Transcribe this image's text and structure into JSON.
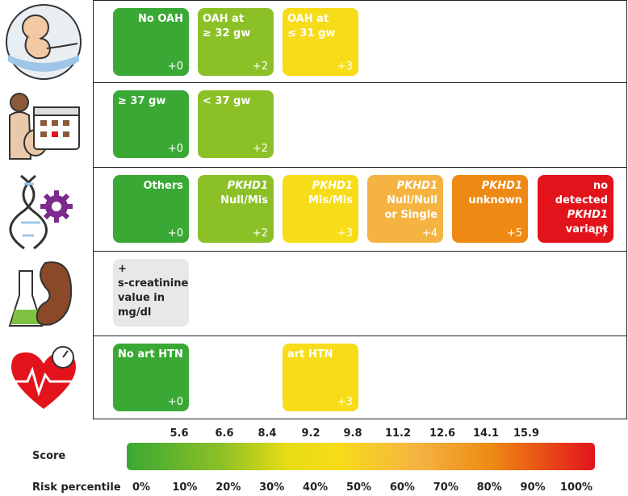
{
  "rows": [
    {
      "icon": "fetus-icon",
      "boxes": [
        {
          "label": "No OAH",
          "points": "+0",
          "color": "#3aa835"
        },
        {
          "label": "OAH at\n≥ 32 gw",
          "points": "+2",
          "color": "#8cc027"
        },
        {
          "label": "OAH at\n≤ 31 gw",
          "points": "+3",
          "color": "#f7dc19"
        }
      ]
    },
    {
      "icon": "pregnant-calendar-icon",
      "boxes": [
        {
          "label": "≥ 37 gw",
          "points": "+0",
          "color": "#3aa835"
        },
        {
          "label": "< 37 gw",
          "points": "+2",
          "color": "#8cc027"
        }
      ]
    },
    {
      "icon": "dna-gear-icon",
      "boxes": [
        {
          "label": "Others",
          "points": "+0",
          "color": "#3aa835"
        },
        {
          "italic": "PKHD1",
          "label": "Null/Mis",
          "points": "+2",
          "color": "#8cc027"
        },
        {
          "italic": "PKHD1",
          "label": "Mis/Mis",
          "points": "+3",
          "color": "#f7dc19"
        },
        {
          "italic": "PKHD1",
          "label": "Null/Null\nor Single",
          "points": "+4",
          "color": "#f5b342"
        },
        {
          "italic": "PKHD1",
          "label": "unknown",
          "points": "+5",
          "color": "#ee8a13"
        },
        {
          "pre": "no detected",
          "italic": "PKHD1",
          "label": "variant",
          "points": "+7",
          "color": "#e2131b"
        }
      ]
    },
    {
      "icon": "kidney-flask-icon",
      "boxes": [
        {
          "label": "+\ns-creatinine\nvalue in\nmg/dl",
          "color": "#e8e8e8"
        }
      ]
    },
    {
      "icon": "heart-pressure-icon",
      "boxes": [
        {
          "label": "No art HTN",
          "points": "+0",
          "color": "#3aa835"
        },
        {
          "label": "art HTN",
          "points": "+3",
          "color": "#f7dc19"
        }
      ]
    }
  ],
  "scale": {
    "score_label": "Score",
    "risk_label": "Risk percentile",
    "scores": [
      "5.6",
      "6.6",
      "8.4",
      "9.2",
      "9.8",
      "11.2",
      "12.6",
      "14.1",
      "15.9"
    ],
    "percentiles": [
      "0%",
      "10%",
      "20%",
      "30%",
      "40%",
      "50%",
      "60%",
      "70%",
      "80%",
      "90%",
      "100%"
    ]
  }
}
